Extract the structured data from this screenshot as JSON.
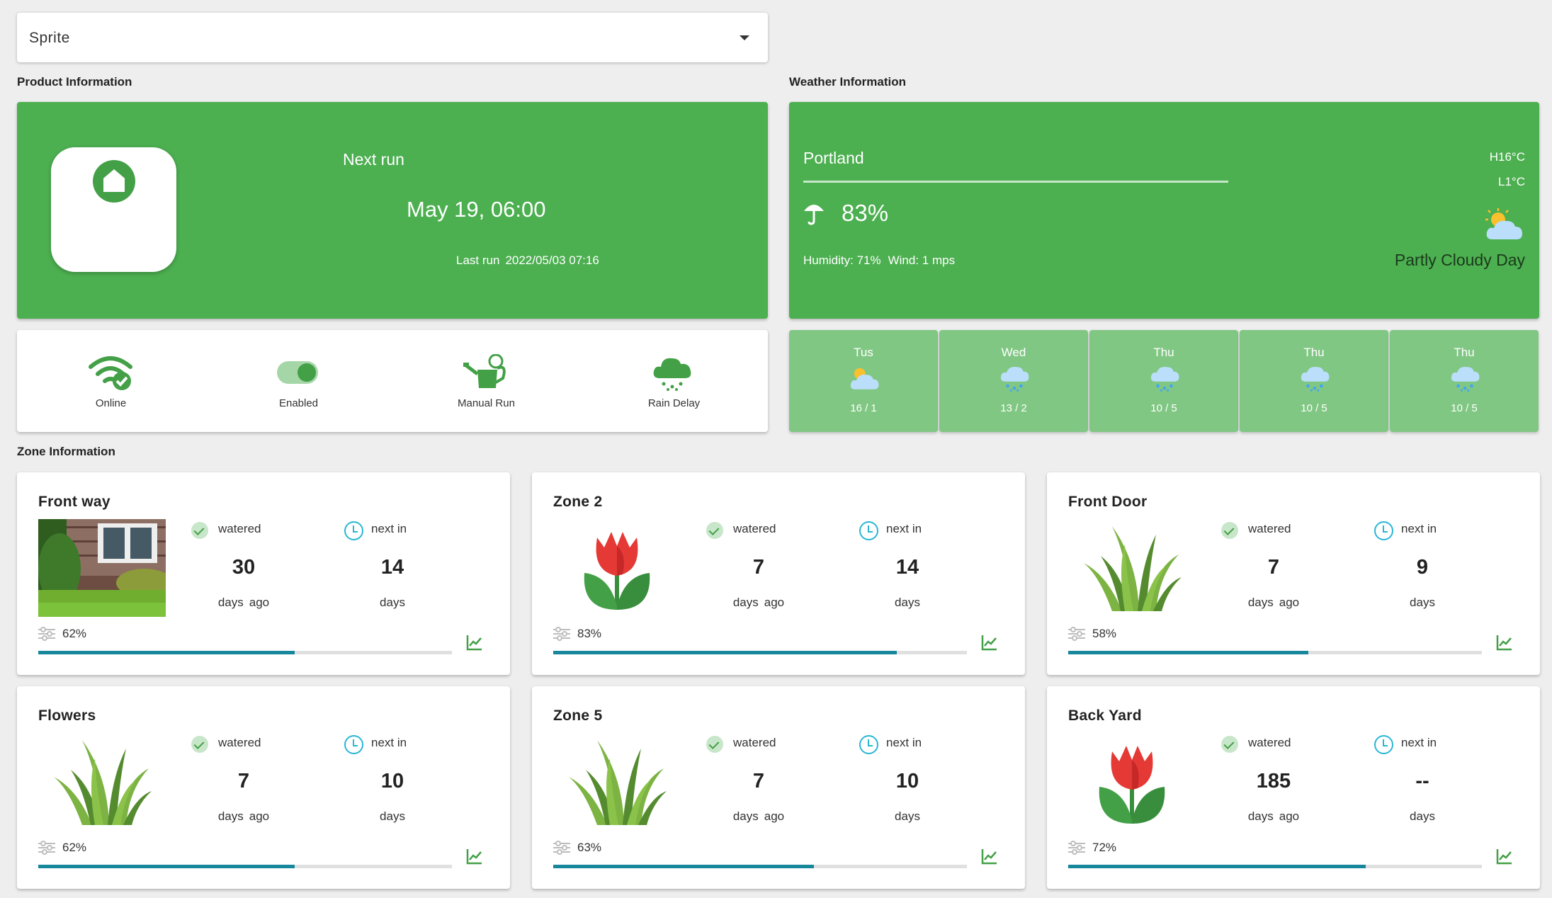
{
  "controller_select": {
    "value": "Sprite"
  },
  "sections": {
    "product": "Product Information",
    "weather": "Weather Information",
    "zones": "Zone Information"
  },
  "product": {
    "next_run_label": "Next run",
    "next_run_time": "May 19, 06:00",
    "last_run_label": "Last run",
    "last_run_time": "2022/05/03 07:16"
  },
  "status": [
    {
      "label": "Online",
      "icon": "wifi-check-icon"
    },
    {
      "label": "Enabled",
      "icon": "toggle-icon"
    },
    {
      "label": "Manual Run",
      "icon": "watering-can-icon"
    },
    {
      "label": "Rain Delay",
      "icon": "rain-cloud-icon"
    }
  ],
  "weather": {
    "city": "Portland",
    "precip": "83%",
    "humidity": "Humidity: 71%",
    "wind": "Wind: 1 mps",
    "high": "H16°C",
    "low": "L1°C",
    "condition": "Partly Cloudy Day",
    "icon": "partly-cloudy-icon"
  },
  "forecast": [
    {
      "day": "Tus",
      "temp": "16 / 1",
      "icon": "partly-cloudy-icon"
    },
    {
      "day": "Wed",
      "temp": "13 / 2",
      "icon": "rain-cloud-icon"
    },
    {
      "day": "Thu",
      "temp": "10 / 5",
      "icon": "rain-cloud-icon"
    },
    {
      "day": "Thu",
      "temp": "10 / 5",
      "icon": "rain-cloud-icon"
    },
    {
      "day": "Thu",
      "temp": "10 / 5",
      "icon": "rain-cloud-icon"
    }
  ],
  "zone_labels": {
    "watered": "watered",
    "next_in": "next in",
    "days": "days",
    "ago": "ago"
  },
  "zones": [
    {
      "name": "Front way",
      "image": "house-photo",
      "watered": "30",
      "next": "14",
      "percent": "62%",
      "fill": 0.62
    },
    {
      "name": "Zone 2",
      "image": "tulip-icon",
      "watered": "7",
      "next": "14",
      "percent": "83%",
      "fill": 0.83
    },
    {
      "name": "Front Door",
      "image": "grass-icon",
      "watered": "7",
      "next": "9",
      "percent": "58%",
      "fill": 0.58
    },
    {
      "name": "Flowers",
      "image": "grass-icon",
      "watered": "7",
      "next": "10",
      "percent": "62%",
      "fill": 0.62
    },
    {
      "name": "Zone 5",
      "image": "grass-icon",
      "watered": "7",
      "next": "10",
      "percent": "63%",
      "fill": 0.63
    },
    {
      "name": "Back Yard",
      "image": "tulip-icon",
      "watered": "185",
      "next": "--",
      "percent": "72%",
      "fill": 0.72
    }
  ],
  "colors": {
    "green": "#4caf50",
    "forecast_green": "#81c784",
    "progress": "#17879b",
    "background": "#eeeeee"
  }
}
